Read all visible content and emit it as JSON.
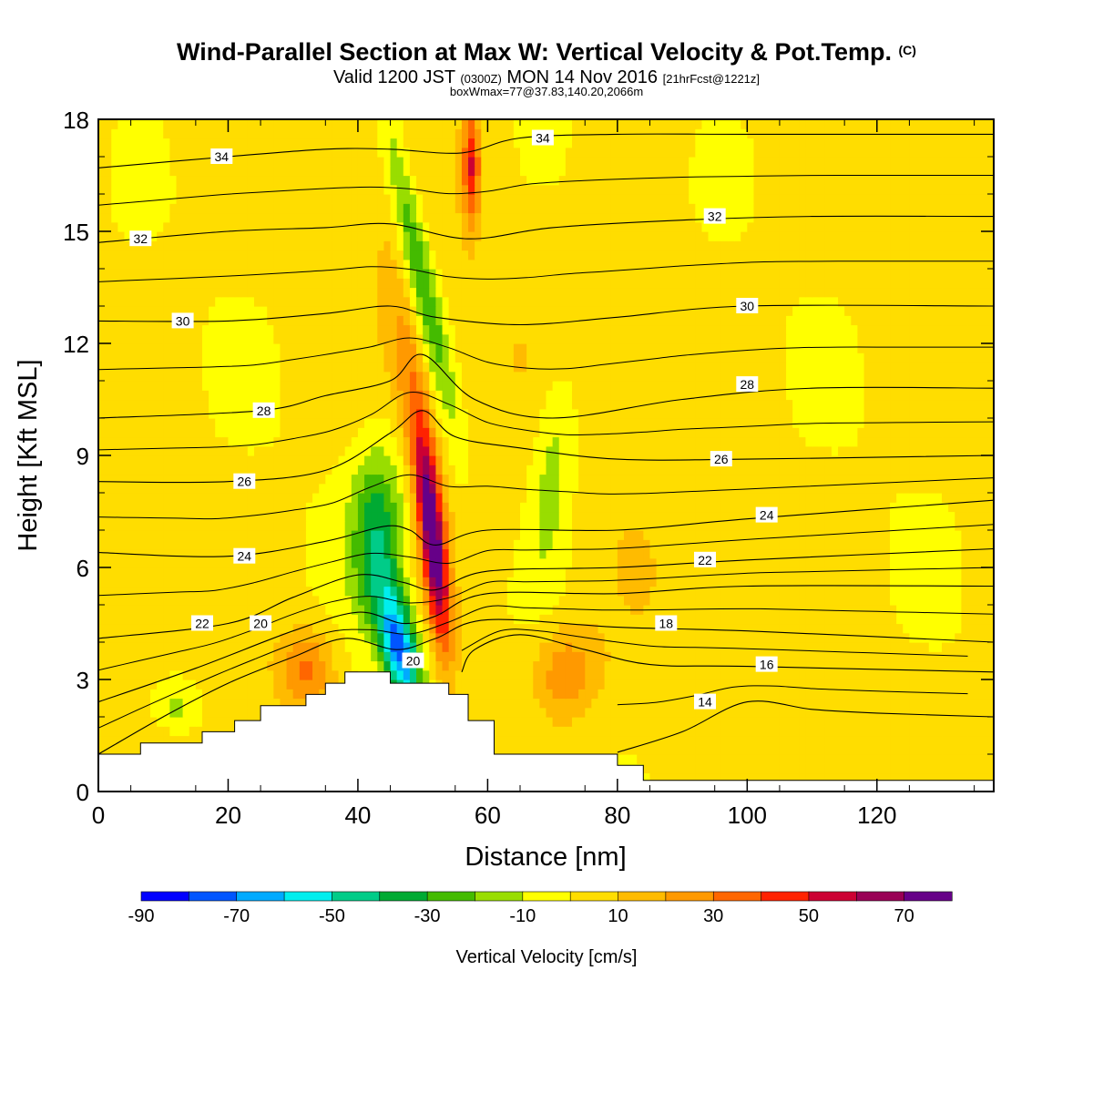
{
  "title": {
    "main": "Wind-Parallel Section at Max W: Vertical Velocity & Pot.Temp.",
    "copyright": "(C)",
    "valid_prefix": "Valid 1200 JST",
    "valid_utc": "(0300Z)",
    "valid_date": "MON 14 Nov 2016",
    "forecast": "[21hrFcst@1221z]",
    "box": "boxWmax=77@37.83,140.20,2066m"
  },
  "chart_data": {
    "type": "heatmap",
    "xlabel": "Distance [nm]",
    "ylabel": "Height [Kft MSL]",
    "xlim": [
      0,
      138
    ],
    "ylim": [
      0,
      18
    ],
    "x_ticks": [
      0,
      20,
      40,
      60,
      80,
      100,
      120
    ],
    "y_ticks": [
      0,
      3,
      6,
      9,
      12,
      15,
      18
    ],
    "colorbar": {
      "label": "Vertical Velocity [cm/s]",
      "boundaries": [
        -90,
        -80,
        -70,
        -60,
        -50,
        -40,
        -30,
        -20,
        -10,
        0,
        10,
        20,
        30,
        40,
        50,
        60,
        70,
        80
      ],
      "tick_labels": [
        "-90",
        "-70",
        "-50",
        "-30",
        "-10",
        "10",
        "30",
        "50",
        "70"
      ],
      "tick_values": [
        -90,
        -70,
        -50,
        -30,
        -10,
        10,
        30,
        50,
        70
      ],
      "colors": [
        "#0000ff",
        "#0055ff",
        "#00aaff",
        "#00eeee",
        "#00cc88",
        "#00aa33",
        "#44bb00",
        "#99dd00",
        "#ffff00",
        "#ffdd00",
        "#ffbb00",
        "#ff9900",
        "#ff6600",
        "#ff2200",
        "#cc0033",
        "#990055",
        "#660088"
      ],
      "placement": "bottom"
    },
    "terrain_kft": [
      [
        0,
        1.0
      ],
      [
        6.5,
        1.0
      ],
      [
        6.5,
        1.3
      ],
      [
        16,
        1.3
      ],
      [
        16,
        1.6
      ],
      [
        21,
        1.6
      ],
      [
        21,
        1.9
      ],
      [
        25,
        1.9
      ],
      [
        25,
        2.3
      ],
      [
        32,
        2.3
      ],
      [
        32,
        2.6
      ],
      [
        35,
        2.6
      ],
      [
        35,
        2.9
      ],
      [
        38,
        2.9
      ],
      [
        38,
        3.2
      ],
      [
        45,
        3.2
      ],
      [
        45,
        2.9
      ],
      [
        54,
        2.9
      ],
      [
        54,
        2.6
      ],
      [
        57,
        2.6
      ],
      [
        57,
        1.9
      ],
      [
        61,
        1.9
      ],
      [
        61,
        1.0
      ],
      [
        80,
        1.0
      ],
      [
        80,
        0.7
      ],
      [
        84,
        0.7
      ],
      [
        84,
        0.3
      ],
      [
        138,
        0.3
      ]
    ],
    "vv_features": [
      {
        "type": "updraft",
        "x_nm": 51.5,
        "z_kft": 6.8,
        "max_cms": 77,
        "rx_nm": 2.0,
        "rz_kft": 3.0,
        "tilt_nm_per_kft": -0.6
      },
      {
        "type": "updraft",
        "x_nm": 57.5,
        "z_kft": 16.8,
        "max_cms": 45,
        "rx_nm": 1.3,
        "rz_kft": 1.5,
        "tilt_nm_per_kft": 0
      },
      {
        "type": "downdraft",
        "x_nm": 46.5,
        "z_kft": 3.8,
        "max_cms": -75,
        "rx_nm": 2.8,
        "rz_kft": 1.6,
        "tilt_nm_per_kft": -1.0
      },
      {
        "type": "downdraft",
        "x_nm": 43.0,
        "z_kft": 6.8,
        "max_cms": -40,
        "rx_nm": 4.0,
        "rz_kft": 2.3,
        "tilt_nm_per_kft": 0
      },
      {
        "type": "downdraft",
        "x_nm": 49.5,
        "z_kft": 14.0,
        "max_cms": -35,
        "rx_nm": 2.2,
        "rz_kft": 4.2,
        "tilt_nm_per_kft": -1.2
      },
      {
        "type": "downdraft",
        "x_nm": 70.0,
        "z_kft": 8.5,
        "max_cms": -20,
        "rx_nm": 3.5,
        "rz_kft": 3.0,
        "tilt_nm_per_kft": 0.4
      },
      {
        "type": "downdraft",
        "x_nm": 12.0,
        "z_kft": 2.3,
        "max_cms": -20,
        "rx_nm": 4.0,
        "rz_kft": 0.8,
        "tilt_nm_per_kft": 0
      },
      {
        "type": "updraft",
        "x_nm": 32.0,
        "z_kft": 3.3,
        "max_cms": 30,
        "rx_nm": 4.0,
        "rz_kft": 1.0,
        "tilt_nm_per_kft": 0
      },
      {
        "type": "updraft",
        "x_nm": 72.0,
        "z_kft": 3.2,
        "max_cms": 25,
        "rx_nm": 5.0,
        "rz_kft": 1.2,
        "tilt_nm_per_kft": 0
      },
      {
        "type": "updraft",
        "x_nm": 48.0,
        "z_kft": 11.0,
        "max_cms": 20,
        "rx_nm": 3.0,
        "rz_kft": 3.0,
        "tilt_nm_per_kft": -0.8
      }
    ],
    "theta_contours": [
      {
        "label": "14",
        "pts": [
          [
            80,
            1.05
          ],
          [
            90,
            1.6
          ],
          [
            100,
            2.4
          ],
          [
            110,
            2.2
          ],
          [
            120,
            2.1
          ],
          [
            138,
            2.0
          ]
        ],
        "label_at": [
          94,
          2.4
        ]
      },
      {
        "label": "16",
        "pts": [
          [
            56,
            3.2
          ],
          [
            58,
            3.8
          ],
          [
            65,
            4.2
          ],
          [
            75,
            3.8
          ],
          [
            85,
            3.4
          ],
          [
            100,
            3.35
          ],
          [
            138,
            3.2
          ]
        ],
        "label_at": [
          56.5,
          3.2
        ]
      },
      {
        "label": "18",
        "pts": [
          [
            0,
            1.0
          ],
          [
            10,
            2.0
          ],
          [
            20,
            2.9
          ],
          [
            30,
            3.6
          ],
          [
            38,
            4.1
          ],
          [
            46,
            3.8
          ],
          [
            52,
            4.1
          ],
          [
            60,
            4.6
          ],
          [
            80,
            4.4
          ],
          [
            100,
            4.3
          ],
          [
            138,
            4.0
          ]
        ],
        "label_at": [
          13,
          2.8
        ]
      },
      {
        "label": "20",
        "pts": [
          [
            0,
            2.4
          ],
          [
            15,
            3.3
          ],
          [
            30,
            4.3
          ],
          [
            40,
            4.8
          ],
          [
            47,
            4.5
          ],
          [
            52,
            4.7
          ],
          [
            60,
            5.3
          ],
          [
            80,
            5.3
          ],
          [
            100,
            5.5
          ],
          [
            138,
            5.5
          ]
        ],
        "label_at": [
          100,
          5.5
        ]
      },
      {
        "label": "22",
        "pts": [
          [
            0,
            4.1
          ],
          [
            20,
            4.5
          ],
          [
            30,
            5.2
          ],
          [
            40,
            5.8
          ],
          [
            47,
            5.6
          ],
          [
            52,
            5.4
          ],
          [
            60,
            5.9
          ],
          [
            80,
            6.0
          ],
          [
            100,
            6.2
          ],
          [
            138,
            6.5
          ]
        ],
        "label_at": [
          61,
          5.9
        ]
      },
      {
        "label": "24",
        "pts": [
          [
            0,
            6.4
          ],
          [
            20,
            6.3
          ],
          [
            35,
            6.7
          ],
          [
            44,
            7.1
          ],
          [
            48,
            7.0
          ],
          [
            52,
            6.6
          ],
          [
            60,
            7.0
          ],
          [
            80,
            7.0
          ],
          [
            100,
            7.3
          ],
          [
            138,
            7.8
          ]
        ],
        "label_at": [
          54,
          6.4
        ]
      },
      {
        "label": "26",
        "pts": [
          [
            0,
            8.3
          ],
          [
            20,
            8.3
          ],
          [
            35,
            8.6
          ],
          [
            45,
            9.6
          ],
          [
            50,
            10.2
          ],
          [
            55,
            9.5
          ],
          [
            65,
            9.2
          ],
          [
            80,
            8.9
          ],
          [
            100,
            8.9
          ],
          [
            138,
            9.0
          ]
        ],
        "label_at": [
          51,
          9.4
        ]
      },
      {
        "label": "28",
        "pts": [
          [
            0,
            10.0
          ],
          [
            25,
            10.2
          ],
          [
            35,
            10.6
          ],
          [
            45,
            11.0
          ],
          [
            50,
            11.7
          ],
          [
            58,
            10.5
          ],
          [
            70,
            10.0
          ],
          [
            90,
            10.5
          ],
          [
            110,
            10.8
          ],
          [
            138,
            10.8
          ]
        ],
        "label_at": [
          59,
          10.5
        ]
      },
      {
        "label": "30",
        "pts": [
          [
            0,
            12.6
          ],
          [
            20,
            12.6
          ],
          [
            35,
            12.8
          ],
          [
            45,
            13.0
          ],
          [
            52,
            12.7
          ],
          [
            65,
            12.5
          ],
          [
            80,
            12.7
          ],
          [
            100,
            13.0
          ],
          [
            138,
            13.0
          ]
        ],
        "label_at": [
          52,
          12.7
        ]
      },
      {
        "label": "32",
        "pts": [
          [
            0,
            14.7
          ],
          [
            20,
            15.0
          ],
          [
            35,
            15.1
          ],
          [
            45,
            15.2
          ],
          [
            57,
            14.8
          ],
          [
            70,
            15.1
          ],
          [
            90,
            15.3
          ],
          [
            110,
            15.4
          ],
          [
            138,
            15.4
          ]
        ],
        "label_at": [
          57,
          14.8
        ]
      },
      {
        "label": "34",
        "pts": [
          [
            0,
            16.7
          ],
          [
            20,
            17.0
          ],
          [
            35,
            17.2
          ],
          [
            45,
            17.2
          ],
          [
            56,
            17.1
          ],
          [
            65,
            17.5
          ],
          [
            80,
            17.6
          ],
          [
            100,
            17.6
          ],
          [
            138,
            17.6
          ]
        ],
        "label_at": [
          56,
          17.1
        ]
      }
    ],
    "contour_labels": [
      {
        "label": "34",
        "x": 19,
        "z": 17.0
      },
      {
        "label": "34",
        "x": 68.5,
        "z": 17.5
      },
      {
        "label": "32",
        "x": 6.5,
        "z": 14.8
      },
      {
        "label": "32",
        "x": 95,
        "z": 15.4
      },
      {
        "label": "30",
        "x": 13,
        "z": 12.6
      },
      {
        "label": "30",
        "x": 100,
        "z": 13.0
      },
      {
        "label": "28",
        "x": 25.5,
        "z": 10.2
      },
      {
        "label": "28",
        "x": 100,
        "z": 10.9
      },
      {
        "label": "26",
        "x": 22.5,
        "z": 8.3
      },
      {
        "label": "26",
        "x": 96,
        "z": 8.9
      },
      {
        "label": "24",
        "x": 22.5,
        "z": 6.3
      },
      {
        "label": "24",
        "x": 103,
        "z": 7.4
      },
      {
        "label": "22",
        "x": 16,
        "z": 4.5
      },
      {
        "label": "22",
        "x": 93.5,
        "z": 6.2
      },
      {
        "label": "20",
        "x": 25,
        "z": 4.5
      },
      {
        "label": "20",
        "x": 48.5,
        "z": 3.5
      },
      {
        "label": "18",
        "x": 87.5,
        "z": 4.5
      },
      {
        "label": "16",
        "x": 103,
        "z": 3.4
      },
      {
        "label": "14",
        "x": 93.5,
        "z": 2.4
      }
    ]
  }
}
